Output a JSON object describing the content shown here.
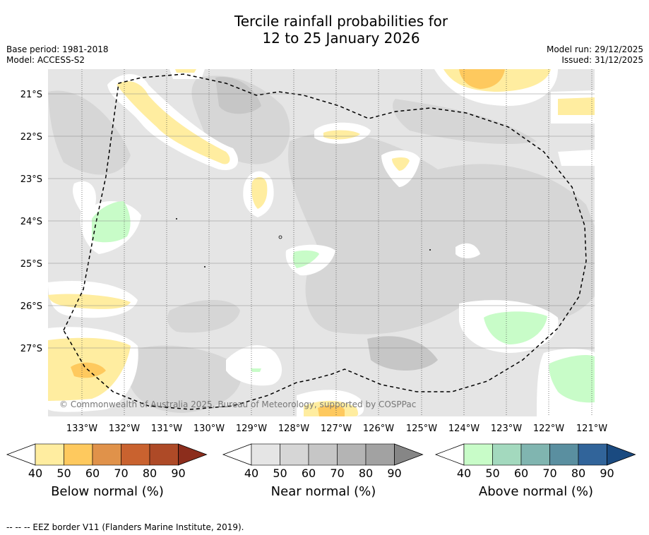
{
  "title_line1": "Tercile rainfall probabilities for",
  "title_line2": "12 to 25 January 2026",
  "base_period": "Base period: 1981-2018",
  "model": "Model: ACCESS-S2",
  "model_run": "Model run: 29/12/2025",
  "issued": "Issued: 31/12/2025",
  "lat_labels": [
    "21°S",
    "22°S",
    "23°S",
    "24°S",
    "25°S",
    "26°S",
    "27°S"
  ],
  "lon_labels": [
    "133°W",
    "132°W",
    "131°W",
    "130°W",
    "129°W",
    "128°W",
    "127°W",
    "126°W",
    "125°W",
    "124°W",
    "123°W",
    "122°W",
    "121°W"
  ],
  "copyright": "© Commonwealth of Australia 2025, Bureau of Meteorology, supported by COSPPac",
  "colorbars": [
    {
      "title": "Below normal (%)",
      "ticks": [
        "40",
        "50",
        "60",
        "70",
        "80",
        "90"
      ],
      "colors": [
        "#ffeda0",
        "#fec95e",
        "#e0924a",
        "#c9622f",
        "#ae4a27",
        "#8c2d1c"
      ]
    },
    {
      "title": "Near normal (%)",
      "ticks": [
        "40",
        "50",
        "60",
        "70",
        "80",
        "90"
      ],
      "colors": [
        "#e5e5e5",
        "#d6d6d6",
        "#c6c6c6",
        "#b4b4b4",
        "#a2a2a2",
        "#868686"
      ]
    },
    {
      "title": "Above normal (%)",
      "ticks": [
        "40",
        "50",
        "60",
        "70",
        "80",
        "90"
      ],
      "colors": [
        "#c8fcc8",
        "#a3d9be",
        "#80b5b0",
        "#5a8fa0",
        "#31649a",
        "#1a4a80"
      ]
    }
  ],
  "legend_note": "--  --  -- EEZ border V11 (Flanders Marine Institute, 2019)."
}
